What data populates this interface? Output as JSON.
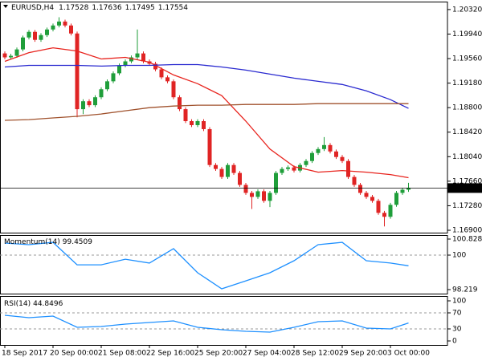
{
  "chart_data": [
    {
      "type": "candlestick",
      "title": "EURUSD,H4",
      "categories": [
        "18 Sep 2017",
        null,
        null,
        null,
        null,
        null,
        null,
        null,
        "20 Sep 00:00",
        null,
        null,
        null,
        null,
        null,
        null,
        null,
        "21 Sep 08:00",
        null,
        null,
        null,
        null,
        null,
        null,
        null,
        "22 Sep 16:00",
        null,
        null,
        null,
        null,
        null,
        null,
        null,
        "25 Sep 20:00",
        null,
        null,
        null,
        null,
        null,
        null,
        null,
        "27 Sep 04:00",
        null,
        null,
        null,
        null,
        null,
        null,
        null,
        "28 Sep 12:00",
        null,
        null,
        null,
        null,
        null,
        null,
        null,
        "29 Sep 20:00",
        null,
        null,
        null,
        null,
        null,
        null,
        null,
        "3 Oct 00:00",
        null,
        null,
        null
      ],
      "open": [
        1.1964,
        1.19579,
        1.19603,
        1.19702,
        1.19887,
        1.19974,
        1.1985,
        1.19924,
        1.20011,
        1.20073,
        1.20134,
        1.20073,
        1.19949,
        1.18776,
        1.18899,
        1.18838,
        1.18961,
        1.19085,
        1.19208,
        1.19332,
        1.19455,
        1.19517,
        1.19579,
        1.1964,
        1.19517,
        1.1948,
        1.19393,
        1.1927,
        1.19208,
        1.18961,
        1.18776,
        1.18591,
        1.18529,
        1.18591,
        1.18467,
        1.17911,
        1.1785,
        1.17726,
        1.17911,
        1.17788,
        1.17603,
        1.17479,
        1.17417,
        1.17504,
        1.17356,
        1.17479,
        1.17788,
        1.1785,
        1.17874,
        1.17825,
        1.17911,
        1.17973,
        1.18097,
        1.18158,
        1.1822,
        1.18121,
        1.18035,
        1.17973,
        1.17726,
        1.17603,
        1.17479,
        1.17417,
        1.17356,
        1.1717,
        1.17109,
        1.17294,
        1.17479,
        1.17528
      ],
      "high": [
        1.1967,
        1.19633,
        1.19732,
        1.19917,
        1.20004,
        1.20004,
        1.19954,
        1.20041,
        1.20103,
        1.202,
        1.20164,
        1.20103,
        1.19979,
        1.18929,
        1.18929,
        1.18991,
        1.19115,
        1.19238,
        1.19362,
        1.19485,
        1.19547,
        1.19609,
        1.20011,
        1.1967,
        1.19547,
        1.1951,
        1.19423,
        1.193,
        1.19238,
        1.18991,
        1.18806,
        1.18621,
        1.18621,
        1.18621,
        1.18497,
        1.17941,
        1.1788,
        1.17941,
        1.17941,
        1.17818,
        1.17633,
        1.17509,
        1.17534,
        1.17534,
        1.17509,
        1.17818,
        1.1788,
        1.17904,
        1.17904,
        1.17941,
        1.18003,
        1.18127,
        1.18188,
        1.18344,
        1.1825,
        1.18151,
        1.18065,
        1.18003,
        1.17756,
        1.17633,
        1.17509,
        1.17447,
        1.17386,
        1.172,
        1.17324,
        1.17509,
        1.17558,
        1.17636
      ],
      "low": [
        1.19549,
        1.19549,
        1.19573,
        1.19672,
        1.19857,
        1.1982,
        1.1982,
        1.19894,
        1.19981,
        1.20043,
        1.20043,
        1.19919,
        1.1865,
        1.187,
        1.18808,
        1.18808,
        1.18931,
        1.19055,
        1.19178,
        1.19302,
        1.19425,
        1.19487,
        1.19549,
        1.19487,
        1.1945,
        1.19363,
        1.1924,
        1.19178,
        1.18931,
        1.18746,
        1.18561,
        1.18499,
        1.18499,
        1.18437,
        1.17881,
        1.1782,
        1.17696,
        1.17696,
        1.17758,
        1.17573,
        1.17449,
        1.1723,
        1.17387,
        1.17326,
        1.1726,
        1.17449,
        1.17758,
        1.1782,
        1.17795,
        1.17795,
        1.17881,
        1.17943,
        1.18067,
        1.18128,
        1.18091,
        1.18005,
        1.17943,
        1.17696,
        1.17573,
        1.17449,
        1.17387,
        1.17326,
        1.1714,
        1.1696,
        1.17079,
        1.17264,
        1.17449,
        1.17495
      ],
      "close": [
        1.19579,
        1.19603,
        1.19702,
        1.19887,
        1.19974,
        1.1985,
        1.19924,
        1.20011,
        1.20073,
        1.20134,
        1.20073,
        1.19949,
        1.18776,
        1.18899,
        1.18838,
        1.18961,
        1.19085,
        1.19208,
        1.19332,
        1.19455,
        1.19517,
        1.19579,
        1.1964,
        1.19517,
        1.1948,
        1.19393,
        1.1927,
        1.19208,
        1.18961,
        1.18776,
        1.18591,
        1.18529,
        1.18591,
        1.18467,
        1.17911,
        1.1785,
        1.17726,
        1.17911,
        1.17788,
        1.17603,
        1.17479,
        1.17417,
        1.17504,
        1.17356,
        1.17479,
        1.17788,
        1.1785,
        1.17874,
        1.17825,
        1.17911,
        1.17973,
        1.18097,
        1.18158,
        1.1822,
        1.18121,
        1.18035,
        1.17973,
        1.17726,
        1.17603,
        1.17479,
        1.17417,
        1.17356,
        1.1717,
        1.17109,
        1.17294,
        1.17479,
        1.17528,
        1.17554
      ],
      "up_color": "#1f9e3a",
      "down_color": "#e02424",
      "lines": [
        {
          "color": "#e8231d",
          "x": [
            0,
            4,
            8,
            12,
            16,
            20,
            24,
            28,
            32,
            36,
            40,
            44,
            48,
            52,
            56,
            60,
            64,
            67
          ],
          "values": [
            1.19517,
            1.19653,
            1.19727,
            1.19677,
            1.19554,
            1.19579,
            1.19504,
            1.19307,
            1.19171,
            1.18986,
            1.18591,
            1.18158,
            1.17887,
            1.178,
            1.17825,
            1.178,
            1.17763,
            1.17714
          ]
        },
        {
          "color": "#2a2ad0",
          "x": [
            0,
            4,
            8,
            12,
            16,
            20,
            24,
            28,
            32,
            36,
            40,
            44,
            48,
            52,
            56,
            60,
            64,
            67
          ],
          "values": [
            1.1943,
            1.19455,
            1.19455,
            1.19455,
            1.19443,
            1.19455,
            1.19455,
            1.19467,
            1.19467,
            1.1943,
            1.19381,
            1.19319,
            1.19257,
            1.19208,
            1.19159,
            1.1906,
            1.18924,
            1.18788
          ]
        },
        {
          "color": "#a0522d",
          "x": [
            0,
            4,
            8,
            12,
            16,
            20,
            24,
            28,
            32,
            36,
            40,
            44,
            48,
            52,
            56,
            60,
            64,
            67
          ],
          "values": [
            1.18603,
            1.18615,
            1.1864,
            1.18665,
            1.18702,
            1.18751,
            1.188,
            1.18825,
            1.18838,
            1.18838,
            1.1885,
            1.1885,
            1.1885,
            1.18862,
            1.18862,
            1.18862,
            1.18862,
            1.18862
          ]
        }
      ],
      "ylim": [
        1.16863,
        1.20443
      ],
      "yticks": [
        {
          "value": 1.2032,
          "label": "1.20320"
        },
        {
          "value": 1.1994,
          "label": "1.19940"
        },
        {
          "value": 1.1956,
          "label": "1.19560"
        },
        {
          "value": 1.1918,
          "label": "1.19180"
        },
        {
          "value": 1.188,
          "label": "1.18800"
        },
        {
          "value": 1.1842,
          "label": "1.18420"
        },
        {
          "value": 1.1804,
          "label": "1.18040"
        },
        {
          "value": 1.1766,
          "label": "1.17660"
        },
        {
          "value": 1.1728,
          "label": "1.17280"
        },
        {
          "value": 1.169,
          "label": "1.16900"
        }
      ]
    },
    {
      "type": "line",
      "series": [
        {
          "name": "Momentum(14)",
          "color": "#1e90ff",
          "x": [
            0,
            4,
            8,
            12,
            16,
            20,
            24,
            28,
            32,
            36,
            40,
            44,
            48,
            52,
            56,
            60,
            64,
            67
          ],
          "values": [
            100.62,
            100.54,
            100.66,
            99.5,
            99.5,
            99.79,
            99.59,
            100.33,
            99.09,
            98.26,
            98.67,
            99.09,
            99.71,
            100.54,
            100.66,
            99.71,
            99.59,
            99.4509
          ]
        }
      ],
      "ylim": [
        98.012,
        101.036
      ],
      "yticks": [
        100.8287,
        100,
        98.219
      ]
    },
    {
      "type": "line",
      "series": [
        {
          "name": "RSI(14)",
          "color": "#1e90ff",
          "x": [
            0,
            4,
            8,
            12,
            16,
            20,
            24,
            28,
            32,
            36,
            40,
            44,
            48,
            52,
            56,
            60,
            64,
            67
          ],
          "values": [
            64,
            58,
            62,
            34,
            36,
            42,
            46,
            50,
            34,
            28,
            24,
            22,
            34,
            48,
            50,
            32,
            30,
            44.8496
          ]
        }
      ],
      "ylim": [
        -10,
        112
      ],
      "yticks": [
        100,
        70,
        30,
        0
      ]
    }
  ]
}
